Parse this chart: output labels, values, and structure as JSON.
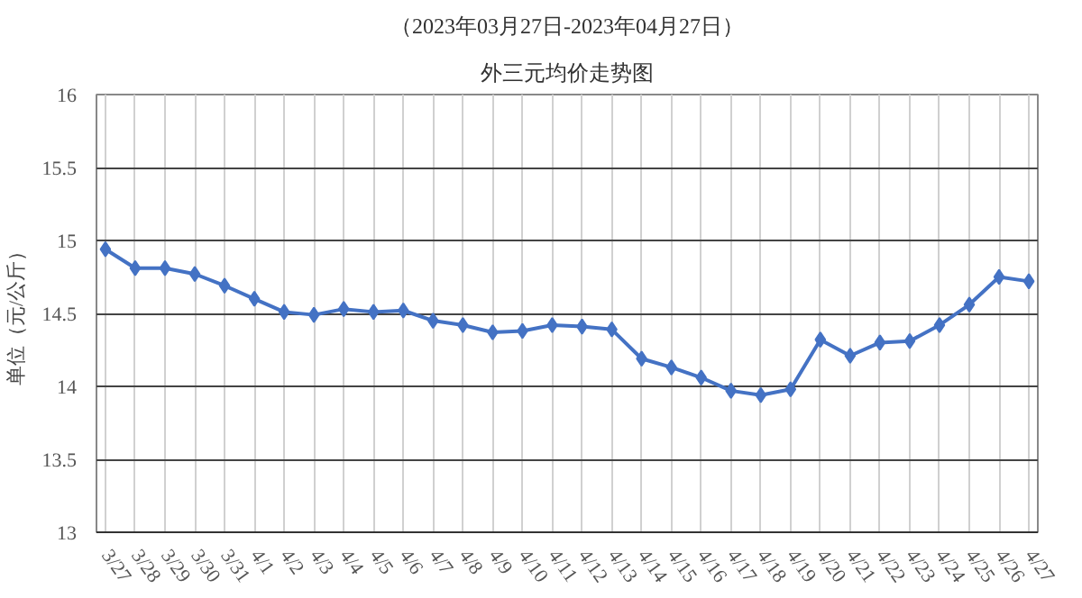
{
  "chart_data": {
    "type": "line",
    "title": "（2023年03月27日-2023年04月27日）",
    "subtitle": "外三元均价走势图",
    "ylabel": "单位（元/公斤）",
    "categories": [
      "3/27",
      "3/28",
      "3/29",
      "3/30",
      "3/31",
      "4/1",
      "4/2",
      "4/3",
      "4/4",
      "4/5",
      "4/6",
      "4/7",
      "4/8",
      "4/9",
      "4/10",
      "4/11",
      "4/12",
      "4/13",
      "4/14",
      "4/15",
      "4/16",
      "4/17",
      "4/18",
      "4/19",
      "4/20",
      "4/21",
      "4/22",
      "4/23",
      "4/24",
      "4/25",
      "4/26",
      "4/27"
    ],
    "series": [
      {
        "color": "#4472c4",
        "values": [
          14.94,
          14.81,
          14.81,
          14.77,
          14.69,
          14.6,
          14.51,
          14.49,
          14.53,
          14.51,
          14.52,
          14.45,
          14.42,
          14.37,
          14.38,
          14.42,
          14.41,
          14.39,
          14.19,
          14.13,
          14.06,
          13.97,
          13.94,
          13.98,
          14.32,
          14.21,
          14.3,
          14.31,
          14.42,
          14.56,
          14.75,
          14.72
        ]
      }
    ],
    "ylim": [
      13,
      16
    ],
    "yticks": [
      13,
      13.5,
      14,
      14.5,
      15,
      15.5,
      16
    ],
    "grid": true,
    "marker": "diamond",
    "line_style": "solid"
  }
}
